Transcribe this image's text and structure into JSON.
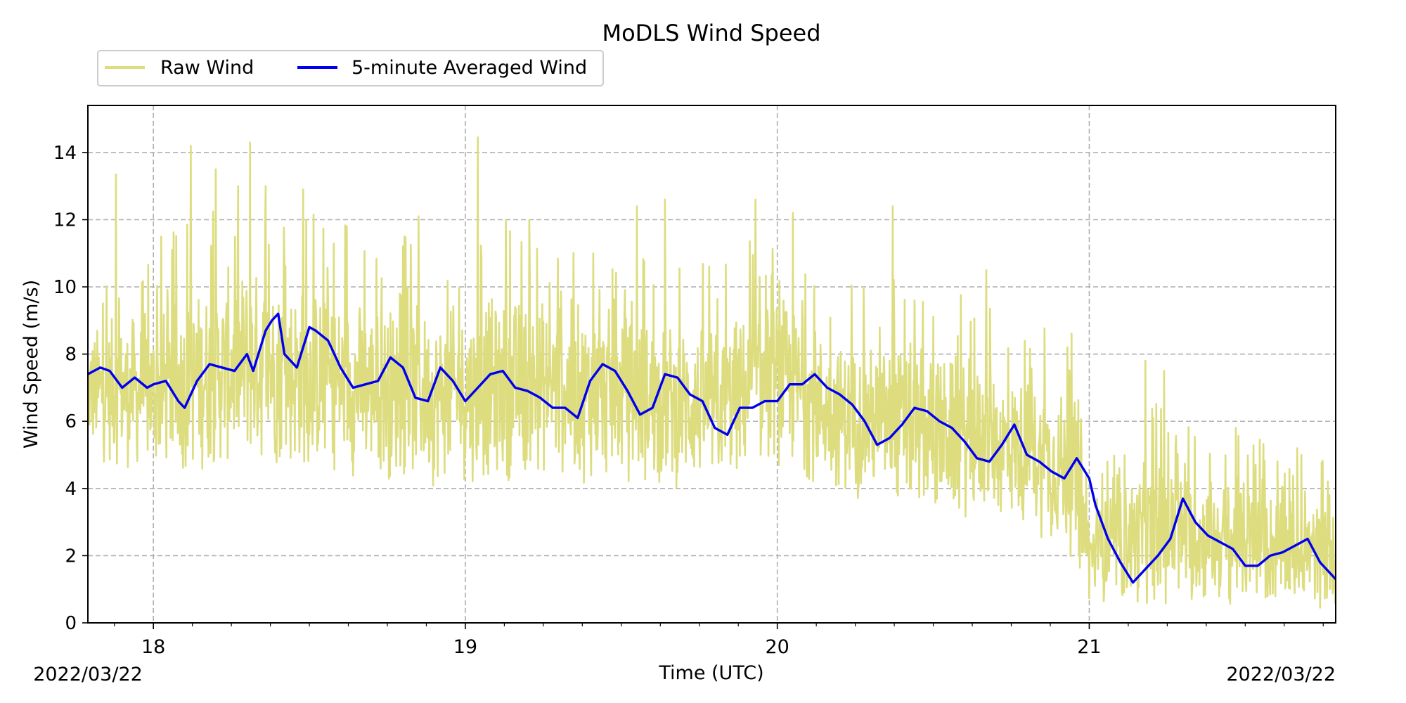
{
  "chart_data": {
    "type": "line",
    "title": "MoDLS Wind Speed",
    "xlabel": "Time (UTC)",
    "ylabel": "Wind Speed (m/s)",
    "date_left": "2022/03/22",
    "date_right": "2022/03/22",
    "x_unit": "hour (UTC)",
    "xlim": [
      17.79,
      21.79
    ],
    "ylim": [
      0,
      15.4
    ],
    "x_ticks": [
      18,
      19,
      20,
      21
    ],
    "x_tick_labels": [
      "18",
      "19",
      "20",
      "21"
    ],
    "y_ticks": [
      0,
      2,
      4,
      6,
      8,
      10,
      12,
      14
    ],
    "y_tick_labels": [
      "0",
      "2",
      "4",
      "6",
      "8",
      "10",
      "12",
      "14"
    ],
    "grid": true,
    "legend_placement": "top-left, above plot",
    "series": [
      {
        "name": "Raw Wind",
        "color": "#dddd80",
        "style": "noisy band",
        "lower_envelope": [
          [
            17.79,
            4.8
          ],
          [
            18.0,
            4.2
          ],
          [
            18.3,
            4.5
          ],
          [
            18.6,
            4.3
          ],
          [
            18.9,
            4.0
          ],
          [
            19.2,
            4.2
          ],
          [
            19.5,
            4.0
          ],
          [
            19.8,
            3.8
          ],
          [
            20.0,
            4.5
          ],
          [
            20.2,
            3.8
          ],
          [
            20.4,
            3.2
          ],
          [
            20.6,
            3.0
          ],
          [
            20.8,
            2.8
          ],
          [
            20.95,
            1.8
          ],
          [
            21.0,
            0.5
          ],
          [
            21.2,
            0.4
          ],
          [
            21.4,
            0.4
          ],
          [
            21.6,
            0.3
          ],
          [
            21.79,
            0.3
          ]
        ],
        "upper_envelope": [
          [
            17.79,
            9.0
          ],
          [
            18.0,
            9.5
          ],
          [
            18.3,
            11.0
          ],
          [
            18.6,
            10.0
          ],
          [
            18.9,
            9.5
          ],
          [
            19.2,
            10.0
          ],
          [
            19.5,
            9.5
          ],
          [
            19.8,
            9.0
          ],
          [
            20.0,
            10.0
          ],
          [
            20.2,
            8.5
          ],
          [
            20.4,
            8.5
          ],
          [
            20.6,
            8.0
          ],
          [
            20.8,
            7.5
          ],
          [
            20.95,
            7.0
          ],
          [
            21.0,
            3.5
          ],
          [
            21.2,
            5.0
          ],
          [
            21.4,
            4.5
          ],
          [
            21.6,
            4.2
          ],
          [
            21.79,
            3.5
          ]
        ],
        "peaks": [
          [
            17.88,
            13.35
          ],
          [
            18.12,
            14.2
          ],
          [
            18.2,
            13.5
          ],
          [
            18.31,
            14.3
          ],
          [
            18.36,
            13.0
          ],
          [
            18.48,
            12.9
          ],
          [
            18.62,
            11.8
          ],
          [
            18.85,
            12.1
          ],
          [
            19.04,
            14.45
          ],
          [
            19.13,
            12.0
          ],
          [
            19.41,
            11.0
          ],
          [
            19.55,
            12.4
          ],
          [
            19.64,
            12.6
          ],
          [
            19.93,
            12.6
          ],
          [
            20.05,
            12.2
          ],
          [
            20.37,
            12.4
          ],
          [
            20.67,
            10.5
          ],
          [
            20.93,
            8.2
          ],
          [
            21.18,
            7.8
          ],
          [
            21.24,
            7.5
          ],
          [
            21.47,
            5.8
          ],
          [
            21.68,
            5.0
          ],
          [
            21.77,
            3.8
          ]
        ]
      },
      {
        "name": "5-minute Averaged Wind",
        "color": "#0000ee",
        "x": [
          17.79,
          17.83,
          17.86,
          17.9,
          17.94,
          17.98,
          18.0,
          18.04,
          18.08,
          18.1,
          18.14,
          18.18,
          18.22,
          18.26,
          18.3,
          18.32,
          18.36,
          18.38,
          18.4,
          18.42,
          18.46,
          18.5,
          18.52,
          18.56,
          18.6,
          18.64,
          18.68,
          18.72,
          18.76,
          18.8,
          18.84,
          18.88,
          18.92,
          18.96,
          19.0,
          19.04,
          19.08,
          19.12,
          19.16,
          19.2,
          19.24,
          19.28,
          19.32,
          19.36,
          19.4,
          19.44,
          19.48,
          19.52,
          19.56,
          19.6,
          19.64,
          19.68,
          19.72,
          19.76,
          19.8,
          19.84,
          19.88,
          19.92,
          19.96,
          20.0,
          20.04,
          20.08,
          20.12,
          20.16,
          20.2,
          20.24,
          20.28,
          20.32,
          20.36,
          20.4,
          20.44,
          20.48,
          20.52,
          20.56,
          20.6,
          20.64,
          20.68,
          20.72,
          20.76,
          20.8,
          20.84,
          20.88,
          20.92,
          20.96,
          21.0,
          21.02,
          21.06,
          21.1,
          21.14,
          21.18,
          21.22,
          21.26,
          21.3,
          21.34,
          21.38,
          21.42,
          21.46,
          21.5,
          21.54,
          21.58,
          21.62,
          21.66,
          21.7,
          21.74,
          21.79
        ],
        "y": [
          7.4,
          7.6,
          7.5,
          7.0,
          7.3,
          7.0,
          7.1,
          7.2,
          6.6,
          6.4,
          7.2,
          7.7,
          7.6,
          7.5,
          8.0,
          7.5,
          8.7,
          9.0,
          9.2,
          8.0,
          7.6,
          8.8,
          8.7,
          8.4,
          7.6,
          7.0,
          7.1,
          7.2,
          7.9,
          7.6,
          6.7,
          6.6,
          7.6,
          7.2,
          6.6,
          7.0,
          7.4,
          7.5,
          7.0,
          6.9,
          6.7,
          6.4,
          6.4,
          6.1,
          7.2,
          7.7,
          7.5,
          6.9,
          6.2,
          6.4,
          7.4,
          7.3,
          6.8,
          6.6,
          5.8,
          5.6,
          6.4,
          6.4,
          6.6,
          6.6,
          7.1,
          7.1,
          7.4,
          7.0,
          6.8,
          6.5,
          6.0,
          5.3,
          5.5,
          5.9,
          6.4,
          6.3,
          6.0,
          5.8,
          5.4,
          4.9,
          4.8,
          5.3,
          5.9,
          5.0,
          4.8,
          4.5,
          4.3,
          4.9,
          4.3,
          3.5,
          2.5,
          1.8,
          1.2,
          1.6,
          2.0,
          2.5,
          3.7,
          3.0,
          2.6,
          2.4,
          2.2,
          1.7,
          1.7,
          2.0,
          2.1,
          2.3,
          2.5,
          1.8,
          1.3
        ]
      }
    ]
  }
}
